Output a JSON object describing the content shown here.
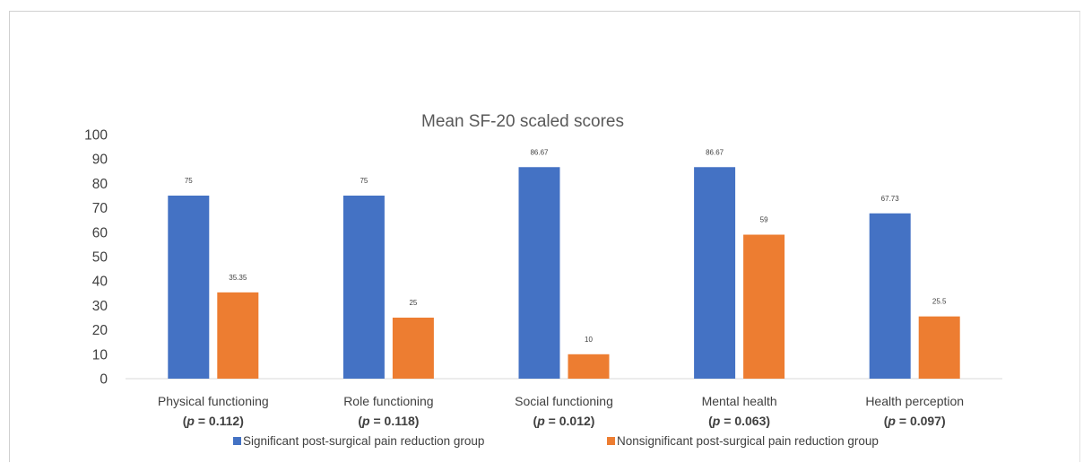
{
  "chart_data": {
    "type": "bar",
    "title": "Mean SF-20 scaled scores",
    "categories": [
      "Physical functioning",
      "Role functioning",
      "Social functioning",
      "Mental health",
      "Health perception"
    ],
    "p_values": [
      "0.112",
      "0.118",
      "0.012",
      "0.063",
      "0.097"
    ],
    "p_symbol": "p",
    "series": [
      {
        "name": "Significant post-surgical pain reduction group",
        "color": "#4472c4",
        "values": [
          75,
          75,
          86.67,
          86.67,
          67.73
        ],
        "labels": [
          "75",
          "75",
          "86.67",
          "86.67",
          "67.73"
        ]
      },
      {
        "name": "Nonsignificant post-surgical pain reduction group",
        "color": "#ed7d31",
        "values": [
          35.35,
          25,
          10,
          59,
          25.5
        ],
        "labels": [
          "35.35",
          "25",
          "10",
          "59",
          "25.5"
        ]
      }
    ],
    "ylim": [
      0,
      100
    ],
    "yticks": [
      0,
      10,
      20,
      30,
      40,
      50,
      60,
      70,
      80,
      90,
      100
    ],
    "grid": false,
    "legend": "bottom"
  }
}
